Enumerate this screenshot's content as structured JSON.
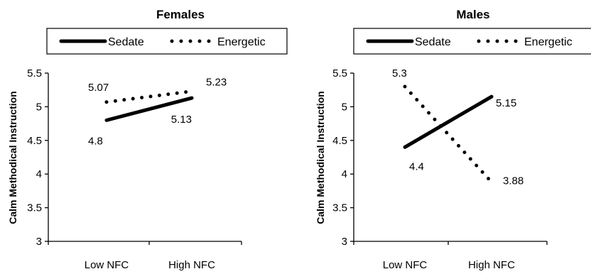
{
  "chart_data": [
    {
      "type": "line",
      "title": "Females",
      "ylabel": "Calm Methodical Instruction",
      "xlabel": "",
      "categories": [
        "Low NFC",
        "High NFC"
      ],
      "ylim": [
        3,
        5.5
      ],
      "yticks": [
        "3",
        "3.5",
        "4",
        "4.5",
        "5",
        "5.5"
      ],
      "series": [
        {
          "name": "Sedate",
          "values": [
            4.8,
            5.13
          ],
          "labels": [
            "4.8",
            "5.13"
          ],
          "style": "solid"
        },
        {
          "name": "Energetic",
          "values": [
            5.07,
            5.23
          ],
          "labels": [
            "5.07",
            "5.23"
          ],
          "style": "dotted"
        }
      ],
      "grid": false,
      "legend": "top"
    },
    {
      "type": "line",
      "title": "Males",
      "ylabel": "Calm Methodical Instruction",
      "xlabel": "",
      "categories": [
        "Low NFC",
        "High NFC"
      ],
      "ylim": [
        3,
        5.5
      ],
      "yticks": [
        "3",
        "3.5",
        "4",
        "4.5",
        "5",
        "5.5"
      ],
      "series": [
        {
          "name": "Sedate",
          "values": [
            4.4,
            5.15
          ],
          "labels": [
            "4.4",
            "5.15"
          ],
          "style": "solid"
        },
        {
          "name": "Energetic",
          "values": [
            5.3,
            3.88
          ],
          "labels": [
            "5.3",
            "3.88"
          ],
          "style": "dotted"
        }
      ],
      "grid": false,
      "legend": "top"
    }
  ]
}
